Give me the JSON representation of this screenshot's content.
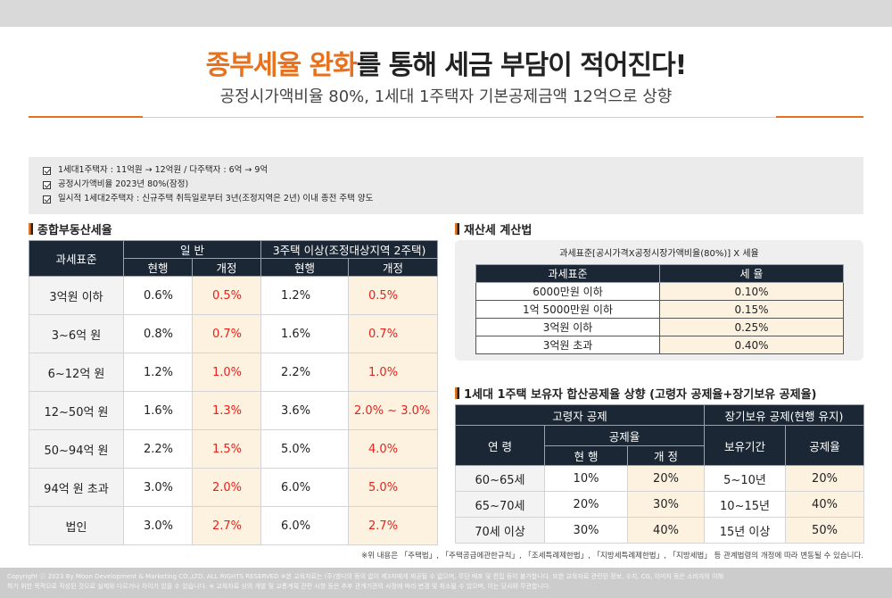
{
  "header": {
    "title_highlight": "종부세율 완화",
    "title_rest": "를 통해 세금 부담이 적어진다!",
    "subtitle": "공정시가액비율 80%, 1세대 1주택자 기본공제금액 12억으로 상향"
  },
  "notes": [
    "1세대1주택자 : 11억원 → 12억원 / 다주택자 : 6억 → 9억",
    "공정시가액비율 2023년 80%(잠정)",
    "일시적 1세대2주택자 : 신규주택 취득일로부터 3년(조정지역은 2년) 이내 종전 주택 양도"
  ],
  "comprehensive": {
    "section_title": "종합부동산세율",
    "col_base": "과세표준",
    "group_general": "일 반",
    "group_multi": "3주택 이상(조정대상지역 2주택)",
    "col_current": "현행",
    "col_revised": "개정",
    "rows": [
      {
        "label": "3억원 이하",
        "g_cur": "0.6%",
        "g_rev": "0.5%",
        "m_cur": "1.2%",
        "m_rev": "0.5%"
      },
      {
        "label": "3~6억 원",
        "g_cur": "0.8%",
        "g_rev": "0.7%",
        "m_cur": "1.6%",
        "m_rev": "0.7%"
      },
      {
        "label": "6~12억 원",
        "g_cur": "1.2%",
        "g_rev": "1.0%",
        "m_cur": "2.2%",
        "m_rev": "1.0%"
      },
      {
        "label": "12~50억 원",
        "g_cur": "1.6%",
        "g_rev": "1.3%",
        "m_cur": "3.6%",
        "m_rev": "2.0% ~ 3.0%"
      },
      {
        "label": "50~94억 원",
        "g_cur": "2.2%",
        "g_rev": "1.5%",
        "m_cur": "5.0%",
        "m_rev": "4.0%"
      },
      {
        "label": "94억 원 초과",
        "g_cur": "3.0%",
        "g_rev": "2.0%",
        "m_cur": "6.0%",
        "m_rev": "5.0%"
      },
      {
        "label": "법인",
        "g_cur": "3.0%",
        "g_rev": "2.7%",
        "m_cur": "6.0%",
        "m_rev": "2.7%"
      }
    ]
  },
  "property_tax": {
    "section_title": "재산세 계산법",
    "formula": "과세표준[공시가격X공정시장가액비율(80%)] X 세율",
    "col_base": "과세표준",
    "col_rate": "세 율",
    "rows": [
      {
        "base": "6000만원 이하",
        "rate": "0.10%"
      },
      {
        "base": "1억 5000만원 이하",
        "rate": "0.15%"
      },
      {
        "base": "3억원 이하",
        "rate": "0.25%"
      },
      {
        "base": "3억원 초과",
        "rate": "0.40%"
      }
    ]
  },
  "deduction": {
    "section_title": "1세대 1주택 보유자 합산공제율 상향 (고령자 공제율+장기보유 공제율)",
    "group_elderly": "고령자 공제",
    "group_long": "장기보유 공제(현행 유지)",
    "col_age": "연 령",
    "col_rate_group": "공제율",
    "col_current": "현 행",
    "col_revised": "개 정",
    "col_period": "보유기간",
    "col_long_rate": "공제율",
    "rows": [
      {
        "age": "60~65세",
        "cur": "10%",
        "rev": "20%",
        "period": "5~10년",
        "rate": "20%"
      },
      {
        "age": "65~70세",
        "cur": "20%",
        "rev": "30%",
        "period": "10~15년",
        "rate": "40%"
      },
      {
        "age": "70세 이상",
        "cur": "30%",
        "rev": "40%",
        "period": "15년 이상",
        "rate": "50%"
      }
    ]
  },
  "source_note": "※위 내용은 「주택법」, 「주택공급에관한규칙」, 「조세특례제한법」, 「지방세특례제한법」, 「지방세법」 등 관계법령의 개정에 따라 변동될 수 있습니다.",
  "footer": {
    "line1": "Copyright ⓒ 2023 By Moon Development & Marketing CO.,LTD. ALL RIGHTS RESERVED  ※본 교육자료는 (주)엠디의 동의 없이 제3자에게 제공될 수 없으며, 무단 배포 및 편집 등이 불가합니다. 또한 교육자료 관련된 정보, 수치, CG, 이미지 등은 소비자의 이해",
    "line2": "하기 위한 목적으로 작성된 것으로 실제와 다르거나 차이가 있을 수 있습니다. ※ 교육자료 상의 개발 및 교통계획 관련 사항 등은 추후 관계기관의 사정에 따라 변경 및 취소될 수 있으며, 이는 당사와 무관합니다."
  }
}
